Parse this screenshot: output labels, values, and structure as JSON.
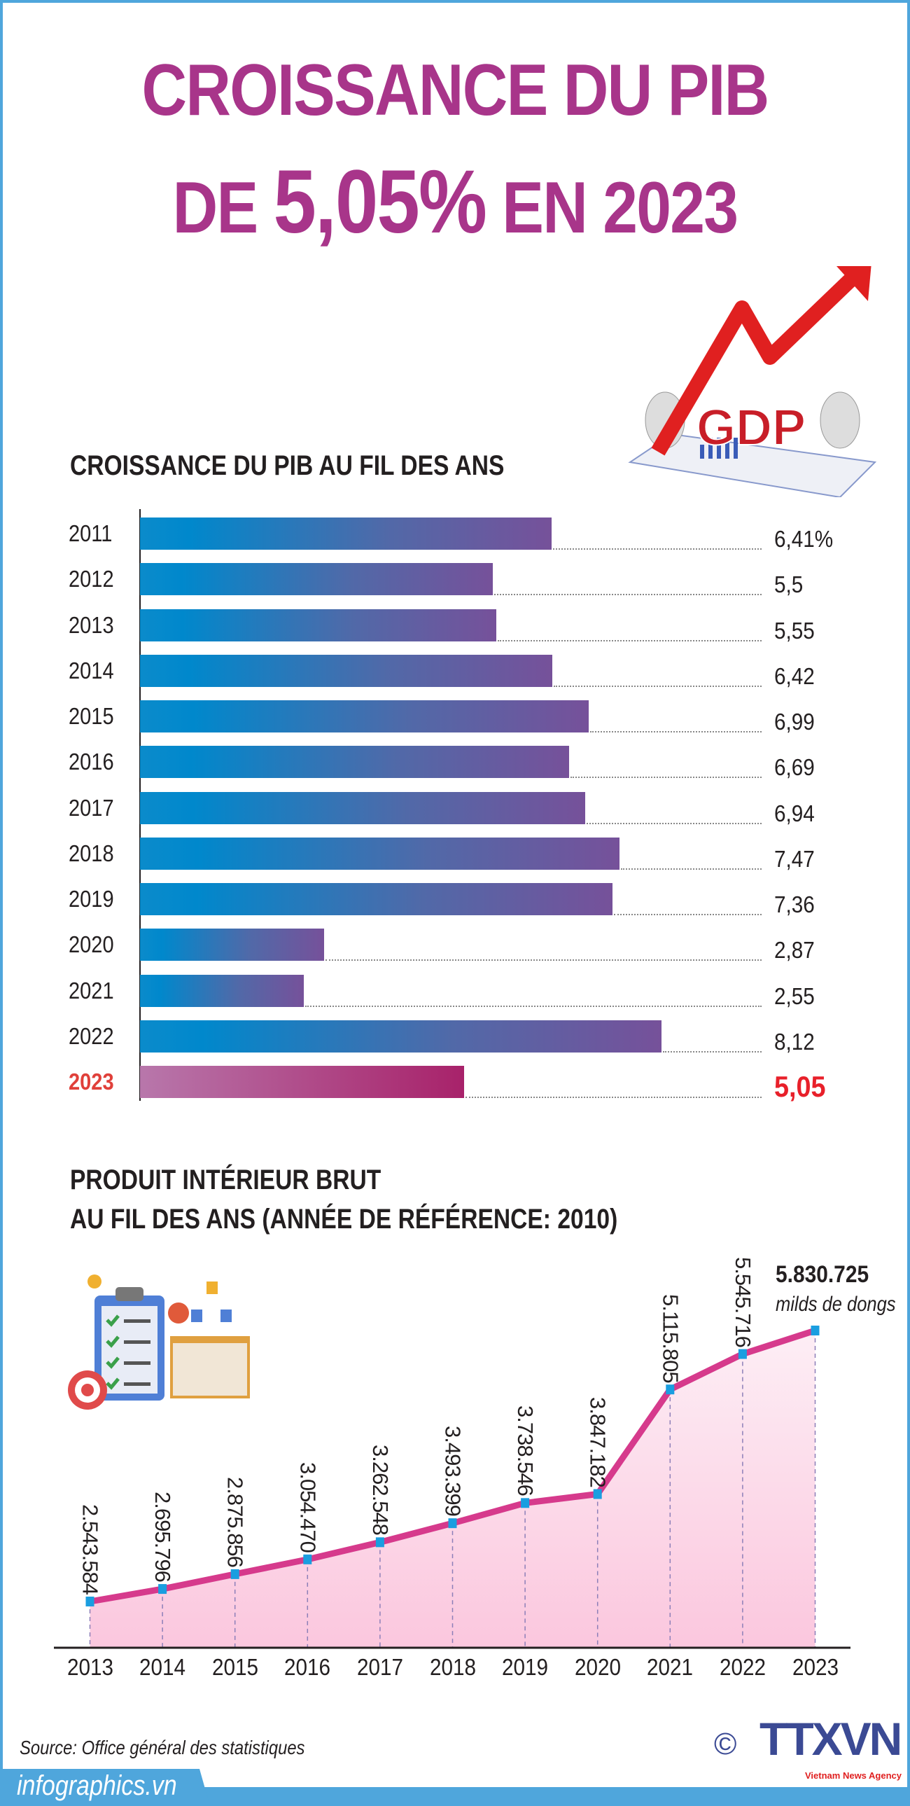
{
  "header": {
    "title_line1": "CROISSANCE DU PIB",
    "title_line2_prefix": "DE ",
    "title_line2_value": "5,05%",
    "title_line2_suffix": " EN 2023"
  },
  "illustration_gdp": {
    "logo_text": "GDP",
    "colors": {
      "arrow": "#e02020"
    }
  },
  "bar_section": {
    "title": "CROISSANCE DU PIB AU FIL DES ANS"
  },
  "line_section": {
    "title_line1": "PRODUIT INTÉRIEUR BRUT",
    "title_line2": "AU FIL DES ANS (ANNÉE DE RÉFÉRENCE: 2010)",
    "last_value_label": "5.830.725",
    "unit": "milds de dongs"
  },
  "chart_data": [
    {
      "type": "bar",
      "orientation": "horizontal",
      "title": "CROISSANCE DU PIB AU FIL DES ANS",
      "categories": [
        "2011",
        "2012",
        "2013",
        "2014",
        "2015",
        "2016",
        "2017",
        "2018",
        "2019",
        "2020",
        "2021",
        "2022",
        "2023"
      ],
      "values": [
        6.41,
        5.5,
        5.55,
        6.42,
        6.99,
        6.69,
        6.94,
        7.47,
        7.36,
        2.87,
        2.55,
        8.12,
        5.05
      ],
      "labels": [
        "6,41%",
        "5,5",
        "5,55",
        "6,42",
        "6,99",
        "6,69",
        "6,94",
        "7,47",
        "7,36",
        "2,87",
        "2,55",
        "8,12",
        "5,05"
      ],
      "highlight": "2023",
      "colors": {
        "bar_start": "#0088cc",
        "bar_end": "#76519a",
        "highlight_start": "#b877ab",
        "highlight_end": "#a8226a",
        "highlight_text": "#e8202a"
      }
    },
    {
      "type": "area",
      "title": "PRODUIT INTÉRIEUR BRUT AU FIL DES ANS (ANNÉE DE RÉFÉRENCE: 2010)",
      "x": [
        "2013",
        "2014",
        "2015",
        "2016",
        "2017",
        "2018",
        "2019",
        "2020",
        "2021",
        "2022",
        "2023"
      ],
      "values": [
        2543584,
        2695796,
        2875856,
        3054470,
        3262548,
        3493399,
        3738546,
        3847182,
        5115805,
        5545716,
        5830725
      ],
      "labels": [
        "2.543.584",
        "2.695.796",
        "2.875.856",
        "3.054.470",
        "3.262.548",
        "3.493.399",
        "3.738.546",
        "3.847.182",
        "5.115.805",
        "5.545.716",
        "5.830.725"
      ],
      "unit": "milds de dongs",
      "colors": {
        "line": "#d63a8c",
        "marker": "#1a9ee0",
        "fill": "#fbd0e3"
      }
    }
  ],
  "footer": {
    "source": "Source: Office général des statistiques",
    "site": "infographics.vn",
    "copyright": "©",
    "agency_logo": "TTXVN",
    "agency_tagline": "Vietnam News Agency",
    "colors": {
      "band": "#4fa6dc",
      "logo": "#3b4a94"
    }
  }
}
